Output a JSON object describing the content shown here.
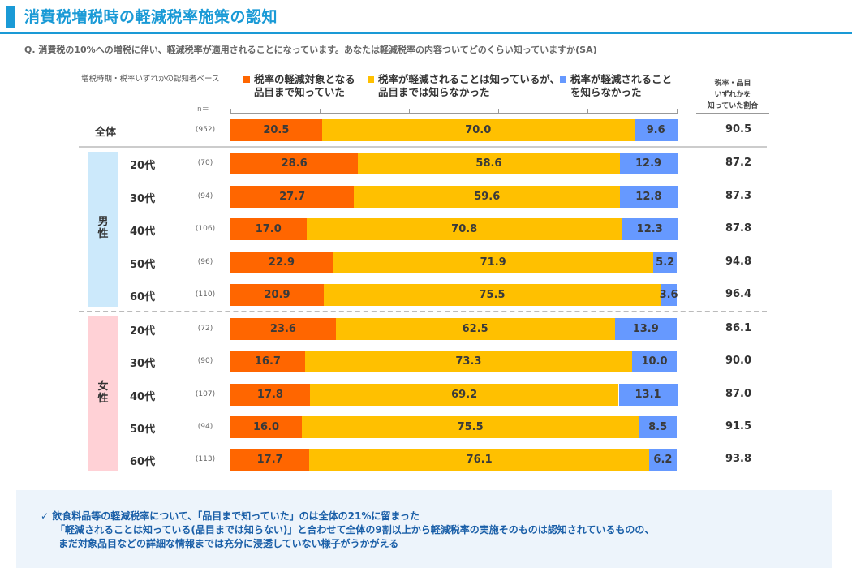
{
  "header": {
    "title": "消費税増税時の軽減税率施策の認知",
    "question": "Q. 消費税の10%への増税に伴い、軽減税率が適用されることになっています。あなたは軽減税率の内容ついてどのくらい知っていますか(SA)",
    "base_note": "増税時期・税率いずれかの認知者ベース",
    "n_label": "n＝"
  },
  "colors": {
    "accent": "#1a9ad6",
    "series1": "#ff6600",
    "series2": "#ffc000",
    "series3": "#6699ff",
    "male_band": "#cce9fb",
    "female_band": "#ffd1d6"
  },
  "chart_data": {
    "type": "bar",
    "orientation": "horizontal-stacked-100",
    "title": "消費税増税時の軽減税率施策の認知",
    "xlim": [
      0,
      100
    ],
    "legend_position": "top",
    "series": [
      {
        "name_line1": "税率の軽減対象となる",
        "name_line2": "品目まで知っていた",
        "name": "税率の軽減対象となる品目まで知っていた",
        "values": [
          20.5,
          28.6,
          27.7,
          17.0,
          22.9,
          20.9,
          23.6,
          16.7,
          17.8,
          16.0,
          17.7
        ]
      },
      {
        "name_line1": "税率が軽減されることは知っているが、",
        "name_line2": "品目までは知らなかった",
        "name": "税率が軽減されることは知っているが、品目までは知らなかった",
        "values": [
          70.0,
          58.6,
          59.6,
          70.8,
          71.9,
          75.5,
          62.5,
          73.3,
          69.2,
          75.5,
          76.1
        ]
      },
      {
        "name_line1": "税率が軽減されること",
        "name_line2": "を知らなかった",
        "name": "税率が軽減されることを知らなかった",
        "values": [
          9.6,
          12.9,
          12.8,
          12.3,
          5.2,
          3.6,
          13.9,
          10.0,
          13.1,
          8.5,
          6.2
        ]
      }
    ],
    "categories": [
      "全体",
      "男性 20代",
      "男性 30代",
      "男性 40代",
      "男性 50代",
      "男性 60代",
      "女性 20代",
      "女性 30代",
      "女性 40代",
      "女性 50代",
      "女性 60代"
    ],
    "rows": [
      {
        "label": "全体",
        "n": "(952)",
        "total": "90.5"
      },
      {
        "label": "20代",
        "n": "(70)",
        "total": "87.2"
      },
      {
        "label": "30代",
        "n": "(94)",
        "total": "87.3"
      },
      {
        "label": "40代",
        "n": "(106)",
        "total": "87.8"
      },
      {
        "label": "50代",
        "n": "(96)",
        "total": "94.8"
      },
      {
        "label": "60代",
        "n": "(110)",
        "total": "96.4"
      },
      {
        "label": "20代",
        "n": "(72)",
        "total": "86.1"
      },
      {
        "label": "30代",
        "n": "(90)",
        "total": "90.0"
      },
      {
        "label": "40代",
        "n": "(107)",
        "total": "87.0"
      },
      {
        "label": "50代",
        "n": "(94)",
        "total": "91.5"
      },
      {
        "label": "60代",
        "n": "(113)",
        "total": "93.8"
      }
    ],
    "groups": [
      {
        "label_line1": "男",
        "label_line2": "性",
        "rows": [
          1,
          2,
          3,
          4,
          5
        ]
      },
      {
        "label_line1": "女",
        "label_line2": "性",
        "rows": [
          6,
          7,
          8,
          9,
          10
        ]
      }
    ],
    "right_column": {
      "header_line1": "税率・品目",
      "header_line2": "いずれかを",
      "header_line3": "知っていた割合"
    }
  },
  "summary": {
    "line1": "✓ 飲食料品等の軽減税率について、「品目まで知っていた」のは全体の21%に留まった",
    "line2": "「軽減されることは知っている(品目までは知らない)」と合わせて全体の9割以上から軽減税率の実施そのものは認知されているものの、",
    "line3": "まだ対象品目などの詳細な情報までは充分に浸透していない様子がうかがえる"
  }
}
